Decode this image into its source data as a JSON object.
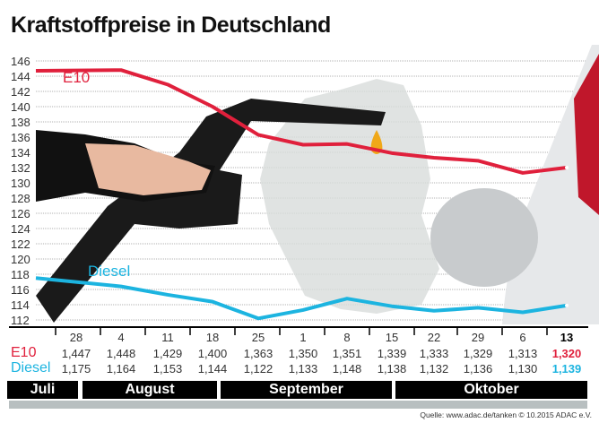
{
  "chart_data": {
    "type": "line",
    "title": "Kraftstoffpreise in Deutschland",
    "ylim": [
      112,
      146
    ],
    "yticks": [
      146,
      144,
      142,
      140,
      138,
      136,
      134,
      132,
      130,
      128,
      126,
      124,
      122,
      120,
      118,
      116,
      114,
      112
    ],
    "grid": true,
    "x": [
      "28",
      "4",
      "11",
      "18",
      "25",
      "1",
      "8",
      "15",
      "22",
      "29",
      "6",
      "13"
    ],
    "series": [
      {
        "name": "E10",
        "color": "#e0203c",
        "values": [
          144.7,
          144.8,
          142.9,
          140.0,
          136.3,
          135.0,
          135.1,
          133.9,
          133.3,
          132.9,
          131.3,
          132.0
        ],
        "table": [
          "1,447",
          "1,448",
          "1,429",
          "1,400",
          "1,363",
          "1,350",
          "1,351",
          "1,339",
          "1,333",
          "1,329",
          "1,313",
          "1,320"
        ]
      },
      {
        "name": "Diesel",
        "color": "#1cb4e0",
        "values": [
          117.5,
          116.4,
          115.3,
          114.4,
          112.2,
          113.3,
          114.8,
          113.8,
          113.2,
          113.6,
          113.0,
          113.9
        ],
        "table": [
          "1,175",
          "1,164",
          "1,153",
          "1,144",
          "1,122",
          "1,133",
          "1,148",
          "1,138",
          "1,132",
          "1,136",
          "1,130",
          "1,139"
        ]
      }
    ],
    "months": [
      "Juli",
      "August",
      "September",
      "Oktober"
    ]
  },
  "source": "Quelle: www.adac.de/tanken  © 10.2015  ADAC e.V."
}
